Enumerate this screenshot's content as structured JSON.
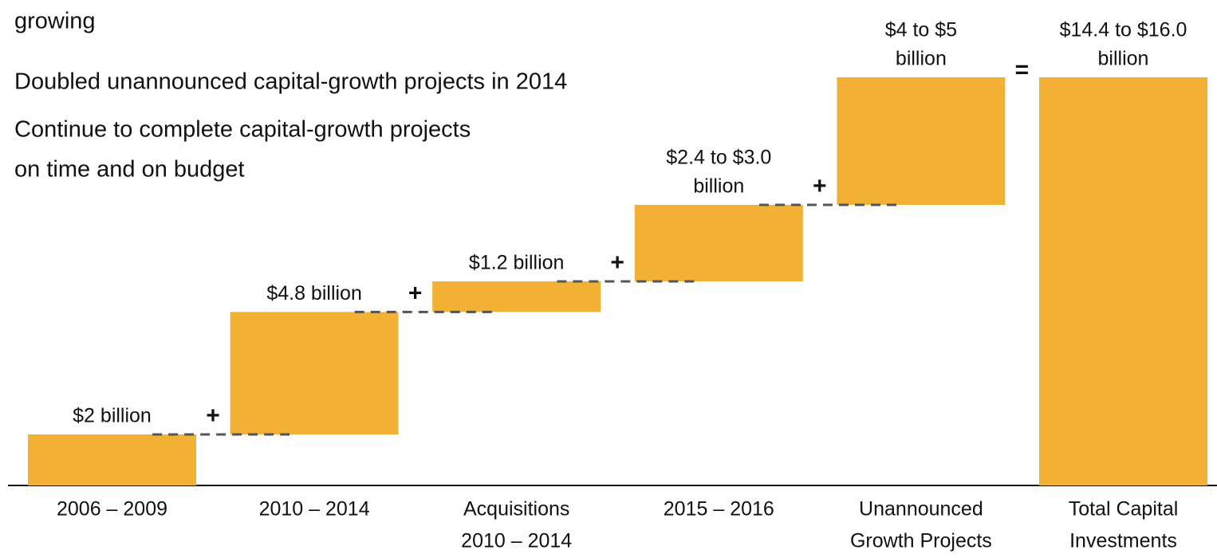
{
  "chart_data": {
    "type": "waterfall",
    "notes": [
      "growing",
      "Doubled unannounced capital-growth projects in 2014",
      "Continue to complete capital-growth projects",
      "on time and on budget"
    ],
    "categories": [
      [
        "2006 – 2009"
      ],
      [
        "2010 – 2014"
      ],
      [
        "Acquisitions",
        "2010 – 2014"
      ],
      [
        "2015 – 2016"
      ],
      [
        "Unannounced",
        "Growth Projects"
      ],
      [
        "Total Capital",
        "Investments"
      ]
    ],
    "values_low": [
      2,
      4.8,
      1.2,
      2.4,
      4,
      14.4
    ],
    "values_high": [
      2,
      4.8,
      1.2,
      3.0,
      5,
      16.0
    ],
    "value_labels": [
      [
        "$2 billion"
      ],
      [
        "$4.8 billion"
      ],
      [
        "$1.2 billion"
      ],
      [
        "$2.4 to $3.0",
        "billion"
      ],
      [
        "$4 to $5",
        "billion"
      ],
      [
        "$14.4 to $16.0",
        "billion"
      ]
    ],
    "operators": [
      "+",
      "+",
      "+",
      "+",
      "="
    ],
    "total_index": 5,
    "color": "#f2b134"
  }
}
